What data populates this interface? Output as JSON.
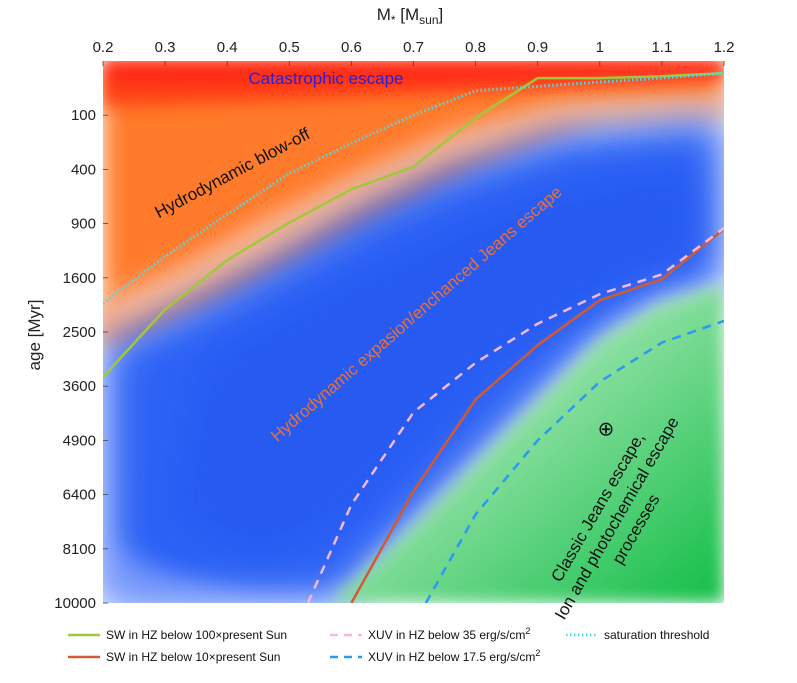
{
  "chart_data": {
    "type": "line",
    "title": "",
    "top_axis_label": "M",
    "top_axis_label_sub1": "*",
    "top_axis_label_mid": " [M",
    "top_axis_label_sub2": "sun",
    "top_axis_label_end": "]",
    "ylabel": "age [Myr]",
    "x_ticks": [
      "0.2",
      "0.3",
      "0.4",
      "0.5",
      "0.6",
      "0.7",
      "0.8",
      "0.9",
      "1",
      "1.1",
      "1.2"
    ],
    "y_ticks": [
      "100",
      "400",
      "900",
      "1600",
      "2500",
      "3600",
      "4900",
      "6400",
      "8100",
      "10000"
    ],
    "xlim": [
      0.2,
      1.2
    ],
    "ylim": [
      10000,
      0
    ],
    "y_scale": "sqrt",
    "regions": [
      {
        "label": "Catastrophic escape",
        "color": "#2222dd"
      },
      {
        "label": "Hydrodynamic blow-off",
        "color": "#111111"
      },
      {
        "label": "Hydrodynamic expasion/enchanced Jeans escape",
        "color": "#e8703a"
      },
      {
        "label_lines": [
          "Classic Jeans escape,",
          "Ion and photochemical escape",
          "processes"
        ],
        "color": "#111111"
      }
    ],
    "earth_symbol": "⊕",
    "earth_position": {
      "mass": 1.01,
      "age": 4600
    },
    "series": [
      {
        "name": "SW in HZ below 100×present Sun",
        "color": "#a0c83c",
        "style": "solid",
        "x": [
          0.2,
          0.3,
          0.4,
          0.5,
          0.6,
          0.7,
          0.8,
          0.9,
          1.0,
          1.1,
          1.2
        ],
        "y": [
          3400,
          2100,
          1350,
          890,
          560,
          380,
          110,
          10,
          10,
          8,
          5
        ]
      },
      {
        "name": "SW in HZ below 10×present Sun",
        "color": "#d05a32",
        "style": "solid",
        "x": [
          0.6,
          0.7,
          0.8,
          0.9,
          1.0,
          1.1,
          1.2
        ],
        "y": [
          10000,
          6300,
          3900,
          2750,
          1950,
          1620,
          960
        ]
      },
      {
        "name": "XUV in HZ below 35 erg/s/cm2",
        "color": "#f4b8e6",
        "style": "dashed",
        "x": [
          0.53,
          0.6,
          0.7,
          0.8,
          0.9,
          1.0,
          1.1,
          1.2
        ],
        "y": [
          10000,
          6700,
          4200,
          3100,
          2350,
          1850,
          1550,
          950
        ]
      },
      {
        "name": "XUV in HZ below 17.5 erg/s/cm2",
        "color": "#2a9af0",
        "style": "dashed",
        "x": [
          0.72,
          0.8,
          0.9,
          1.0,
          1.1,
          1.2
        ],
        "y": [
          10000,
          7000,
          4900,
          3500,
          2700,
          2300
        ]
      },
      {
        "name": "saturation threshold",
        "color": "#4fd8e6",
        "style": "dotted",
        "x": [
          0.2,
          0.3,
          0.4,
          0.5,
          0.6,
          0.7,
          0.8,
          0.9,
          1.0,
          1.1,
          1.2
        ],
        "y": [
          2000,
          1300,
          800,
          430,
          230,
          100,
          30,
          22,
          15,
          10,
          5
        ]
      }
    ],
    "legend": {
      "placement": "bottom",
      "items": [
        {
          "text": "SW in HZ below 100×present Sun",
          "sup": ""
        },
        {
          "text": "SW in HZ below 10×present Sun",
          "sup": ""
        },
        {
          "text": "XUV in HZ below 35 erg/s/cm",
          "sup": "2"
        },
        {
          "text": "XUV in HZ below 17.5 erg/s/cm",
          "sup": "2"
        },
        {
          "text": "saturation threshold",
          "sup": ""
        }
      ]
    },
    "colors": {
      "red": "#ff1e14",
      "orange": "#ff6a1a",
      "peach": "#ffbe9a",
      "blue": "#2f63f5",
      "light_green": "#cbf2d8",
      "green": "#13c04a"
    }
  }
}
